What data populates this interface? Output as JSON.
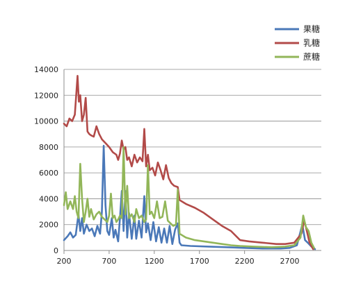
{
  "chart_data": {
    "type": "line",
    "xlim": [
      200,
      3050
    ],
    "ylim": [
      0,
      14000
    ],
    "x_ticks": [
      200,
      700,
      1200,
      1700,
      2200,
      2700
    ],
    "y_ticks": [
      0,
      2000,
      4000,
      6000,
      8000,
      10000,
      12000,
      14000
    ],
    "grid": true,
    "legend_position": "top-right",
    "series": [
      {
        "name": "果糖",
        "color": "#4a78b8",
        "points": [
          [
            200,
            800
          ],
          [
            240,
            1100
          ],
          [
            270,
            1400
          ],
          [
            300,
            1000
          ],
          [
            330,
            1200
          ],
          [
            360,
            2800
          ],
          [
            380,
            1500
          ],
          [
            400,
            2500
          ],
          [
            420,
            1300
          ],
          [
            450,
            2000
          ],
          [
            480,
            1500
          ],
          [
            510,
            1700
          ],
          [
            540,
            1100
          ],
          [
            570,
            1900
          ],
          [
            600,
            1300
          ],
          [
            620,
            3000
          ],
          [
            640,
            8100
          ],
          [
            660,
            3500
          ],
          [
            680,
            1500
          ],
          [
            700,
            1200
          ],
          [
            730,
            2500
          ],
          [
            750,
            1000
          ],
          [
            770,
            1600
          ],
          [
            800,
            700
          ],
          [
            820,
            2500
          ],
          [
            840,
            4600
          ],
          [
            860,
            1500
          ],
          [
            880,
            4600
          ],
          [
            900,
            1000
          ],
          [
            920,
            2900
          ],
          [
            950,
            900
          ],
          [
            980,
            2700
          ],
          [
            1000,
            900
          ],
          [
            1030,
            2300
          ],
          [
            1060,
            1000
          ],
          [
            1090,
            4200
          ],
          [
            1110,
            1400
          ],
          [
            1130,
            2100
          ],
          [
            1160,
            800
          ],
          [
            1190,
            2200
          ],
          [
            1220,
            700
          ],
          [
            1250,
            1800
          ],
          [
            1280,
            600
          ],
          [
            1310,
            1700
          ],
          [
            1340,
            600
          ],
          [
            1370,
            1900
          ],
          [
            1400,
            500
          ],
          [
            1430,
            1600
          ],
          [
            1460,
            2100
          ],
          [
            1480,
            600
          ],
          [
            1500,
            400
          ],
          [
            1600,
            350
          ],
          [
            1800,
            300
          ],
          [
            2000,
            250
          ],
          [
            2200,
            200
          ],
          [
            2400,
            150
          ],
          [
            2600,
            150
          ],
          [
            2700,
            200
          ],
          [
            2780,
            400
          ],
          [
            2840,
            2000
          ],
          [
            2870,
            800
          ],
          [
            2900,
            600
          ],
          [
            2940,
            300
          ],
          [
            2980,
            100
          ]
        ]
      },
      {
        "name": "乳糖",
        "color": "#b24a48",
        "points": [
          [
            200,
            9800
          ],
          [
            230,
            9600
          ],
          [
            260,
            10200
          ],
          [
            290,
            10000
          ],
          [
            320,
            10500
          ],
          [
            350,
            13500
          ],
          [
            365,
            11500
          ],
          [
            380,
            12000
          ],
          [
            400,
            10000
          ],
          [
            420,
            10500
          ],
          [
            440,
            11800
          ],
          [
            460,
            9200
          ],
          [
            480,
            9000
          ],
          [
            500,
            8900
          ],
          [
            530,
            8800
          ],
          [
            560,
            9600
          ],
          [
            590,
            9000
          ],
          [
            620,
            8600
          ],
          [
            660,
            8300
          ],
          [
            700,
            8000
          ],
          [
            740,
            7600
          ],
          [
            780,
            7400
          ],
          [
            800,
            7000
          ],
          [
            820,
            7500
          ],
          [
            840,
            8500
          ],
          [
            860,
            7800
          ],
          [
            880,
            8000
          ],
          [
            900,
            7000
          ],
          [
            920,
            7200
          ],
          [
            950,
            6500
          ],
          [
            980,
            7400
          ],
          [
            1010,
            6800
          ],
          [
            1040,
            7200
          ],
          [
            1070,
            6900
          ],
          [
            1090,
            9400
          ],
          [
            1110,
            6500
          ],
          [
            1130,
            7400
          ],
          [
            1150,
            6200
          ],
          [
            1180,
            6400
          ],
          [
            1210,
            5800
          ],
          [
            1240,
            6800
          ],
          [
            1270,
            6200
          ],
          [
            1300,
            5500
          ],
          [
            1330,
            6600
          ],
          [
            1360,
            5600
          ],
          [
            1390,
            5200
          ],
          [
            1420,
            5000
          ],
          [
            1460,
            4900
          ],
          [
            1480,
            3900
          ],
          [
            1550,
            3600
          ],
          [
            1650,
            3300
          ],
          [
            1750,
            2900
          ],
          [
            1850,
            2400
          ],
          [
            1950,
            1900
          ],
          [
            2050,
            1500
          ],
          [
            2150,
            800
          ],
          [
            2250,
            700
          ],
          [
            2400,
            600
          ],
          [
            2550,
            500
          ],
          [
            2650,
            500
          ],
          [
            2750,
            600
          ],
          [
            2830,
            1300
          ],
          [
            2860,
            2300
          ],
          [
            2880,
            1800
          ],
          [
            2920,
            600
          ],
          [
            2960,
            100
          ]
        ]
      },
      {
        "name": "蔗糖",
        "color": "#92b659",
        "points": [
          [
            200,
            3500
          ],
          [
            220,
            4500
          ],
          [
            240,
            3200
          ],
          [
            270,
            3800
          ],
          [
            300,
            3200
          ],
          [
            320,
            4200
          ],
          [
            340,
            3000
          ],
          [
            360,
            2500
          ],
          [
            380,
            6700
          ],
          [
            400,
            4000
          ],
          [
            420,
            2200
          ],
          [
            440,
            3000
          ],
          [
            460,
            4000
          ],
          [
            480,
            2600
          ],
          [
            500,
            3200
          ],
          [
            530,
            2400
          ],
          [
            560,
            2800
          ],
          [
            590,
            3000
          ],
          [
            620,
            2600
          ],
          [
            650,
            2400
          ],
          [
            680,
            2200
          ],
          [
            700,
            2700
          ],
          [
            720,
            4400
          ],
          [
            740,
            2500
          ],
          [
            760,
            2700
          ],
          [
            780,
            2200
          ],
          [
            800,
            2400
          ],
          [
            820,
            2700
          ],
          [
            840,
            2500
          ],
          [
            860,
            8000
          ],
          [
            880,
            2800
          ],
          [
            900,
            5000
          ],
          [
            920,
            2500
          ],
          [
            950,
            2800
          ],
          [
            980,
            2200
          ],
          [
            1000,
            3200
          ],
          [
            1030,
            2500
          ],
          [
            1060,
            2700
          ],
          [
            1090,
            2200
          ],
          [
            1110,
            2400
          ],
          [
            1130,
            6600
          ],
          [
            1150,
            2800
          ],
          [
            1170,
            3000
          ],
          [
            1200,
            2500
          ],
          [
            1230,
            3800
          ],
          [
            1260,
            2500
          ],
          [
            1290,
            2600
          ],
          [
            1320,
            3800
          ],
          [
            1350,
            2300
          ],
          [
            1380,
            2100
          ],
          [
            1410,
            1900
          ],
          [
            1440,
            2000
          ],
          [
            1460,
            4700
          ],
          [
            1480,
            1300
          ],
          [
            1550,
            1000
          ],
          [
            1650,
            800
          ],
          [
            1750,
            700
          ],
          [
            1850,
            600
          ],
          [
            1950,
            500
          ],
          [
            2050,
            400
          ],
          [
            2150,
            350
          ],
          [
            2300,
            300
          ],
          [
            2500,
            250
          ],
          [
            2650,
            300
          ],
          [
            2750,
            400
          ],
          [
            2820,
            1000
          ],
          [
            2850,
            2700
          ],
          [
            2880,
            1800
          ],
          [
            2910,
            1500
          ],
          [
            2940,
            600
          ],
          [
            2970,
            200
          ]
        ]
      }
    ]
  }
}
